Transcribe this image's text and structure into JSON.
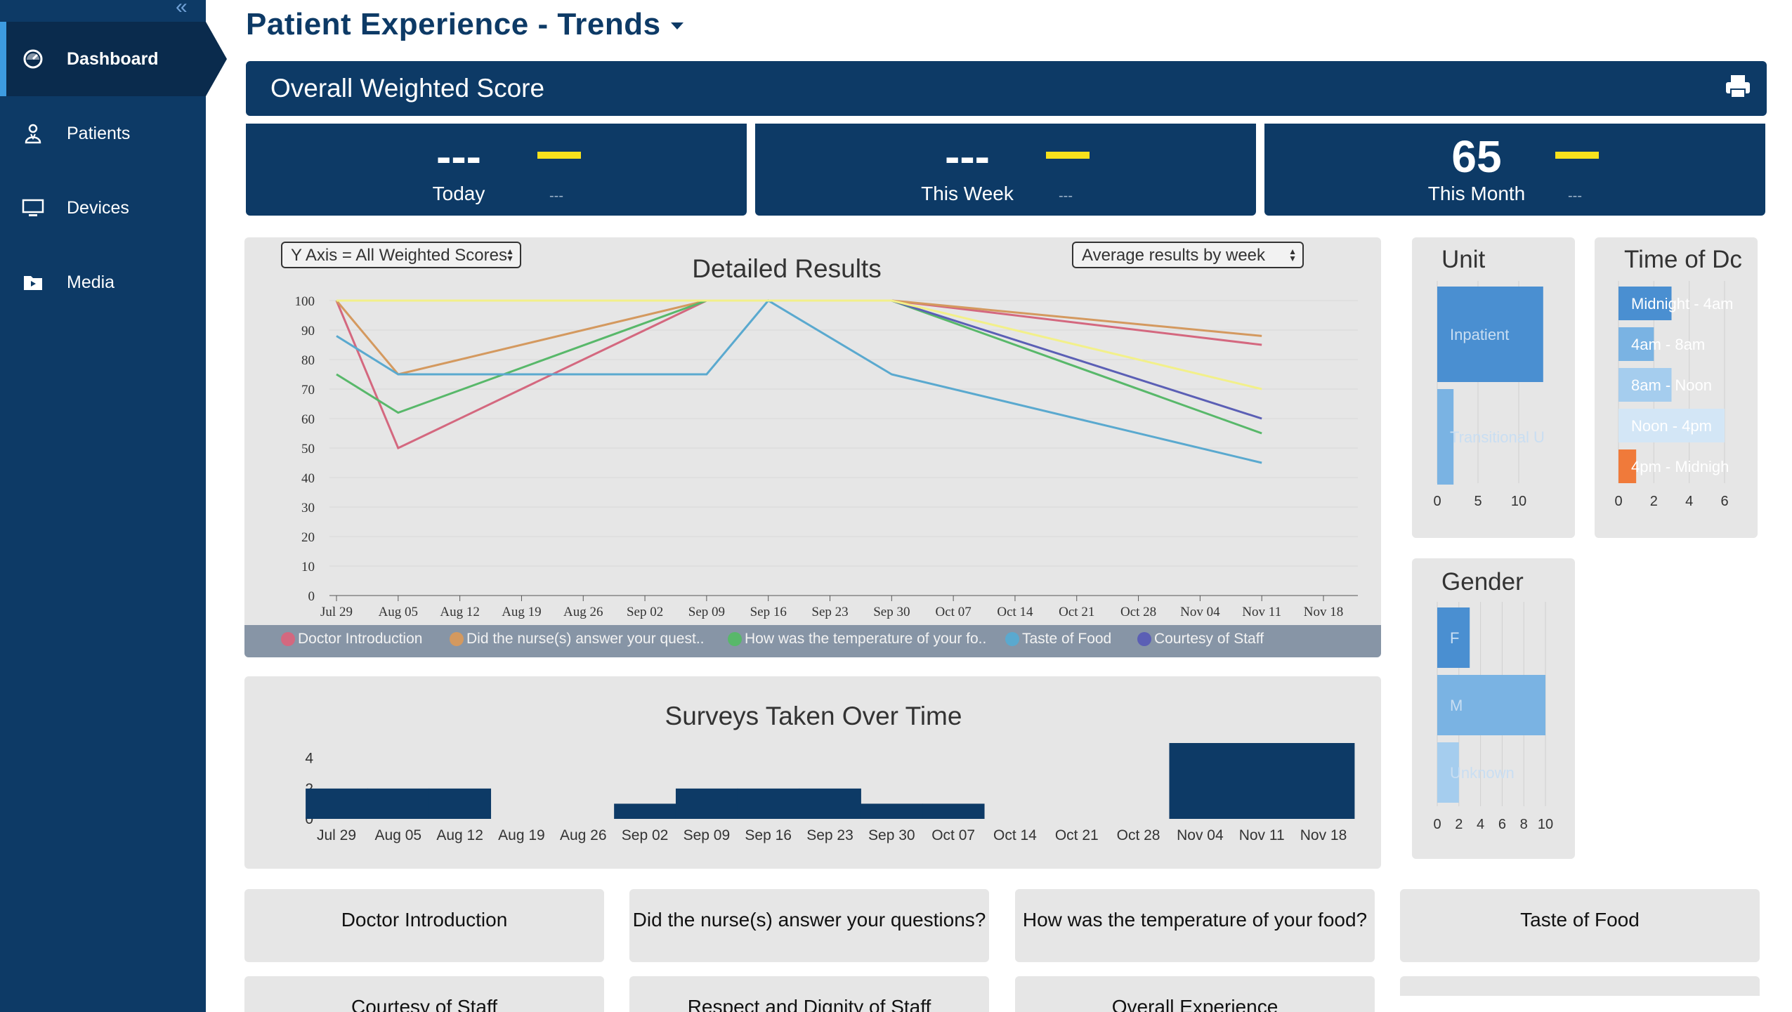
{
  "sidebar": {
    "collapse_icon": "double-chevron-left-icon",
    "items": [
      {
        "label": "Dashboard",
        "icon": "dashboard-icon",
        "active": true
      },
      {
        "label": "Patients",
        "icon": "patient-icon"
      },
      {
        "label": "Devices",
        "icon": "monitor-icon"
      },
      {
        "label": "Media",
        "icon": "media-folder-icon"
      }
    ]
  },
  "page": {
    "title": "Patient Experience - Trends"
  },
  "score": {
    "title": "Overall Weighted Score",
    "print_icon": "printer-icon",
    "kpis": [
      {
        "value": "---",
        "label": "Today",
        "sub": "---"
      },
      {
        "value": "---",
        "label": "This Week",
        "sub": "---"
      },
      {
        "value": "65",
        "label": "This Month",
        "sub": "---"
      }
    ]
  },
  "detailed": {
    "title": "Detailed Results",
    "y_select": "Y Axis = All Weighted Scores",
    "period_select": "Average results by week",
    "legend": [
      {
        "name": "Doctor Introduction",
        "color": "#d4687f"
      },
      {
        "name": "Did the nurse(s) answer your quest..",
        "color": "#d4995f"
      },
      {
        "name": "How was the temperature of your fo..",
        "color": "#58b86a"
      },
      {
        "name": "Taste of Food",
        "color": "#5aa9cf"
      },
      {
        "name": "Courtesy of Staff",
        "color": "#5b5fb5"
      }
    ]
  },
  "surveys": {
    "title": "Surveys Taken Over Time"
  },
  "unit": {
    "title": "Unit"
  },
  "timeofday": {
    "title": "Time of Dc"
  },
  "gender": {
    "title": "Gender"
  },
  "questions": [
    "Doctor Introduction",
    "Did the nurse(s) answer your questions?",
    "How was the temperature of your food?",
    "Taste of Food",
    "Courtesy of Staff",
    "Respect and Dignity of Staff",
    "Overall Experience"
  ],
  "chart_data": [
    {
      "type": "line",
      "title": "Detailed Results",
      "x": [
        "Jul 29",
        "Aug 05",
        "Aug 12",
        "Aug 19",
        "Aug 26",
        "Sep 02",
        "Sep 09",
        "Sep 16",
        "Sep 23",
        "Sep 30",
        "Oct 07",
        "Oct 14",
        "Oct 21",
        "Oct 28",
        "Nov 04",
        "Nov 11",
        "Nov 18"
      ],
      "ylim": [
        0,
        100
      ],
      "yticks": [
        0,
        10,
        20,
        30,
        40,
        50,
        60,
        70,
        80,
        90,
        100
      ],
      "series": [
        {
          "name": "Doctor Introduction",
          "color": "#d4687f",
          "points": [
            [
              0,
              100
            ],
            [
              1,
              50
            ],
            [
              6,
              100
            ],
            [
              9,
              100
            ],
            [
              15,
              85
            ]
          ]
        },
        {
          "name": "Did the nurse(s) answer your quest..",
          "color": "#d4995f",
          "points": [
            [
              0,
              100
            ],
            [
              1,
              75
            ],
            [
              6,
              100
            ],
            [
              9,
              100
            ],
            [
              15,
              88
            ]
          ]
        },
        {
          "name": "How was the temperature of your fo..",
          "color": "#58b86a",
          "points": [
            [
              0,
              75
            ],
            [
              1,
              62
            ],
            [
              6,
              100
            ],
            [
              9,
              100
            ],
            [
              15,
              55
            ]
          ]
        },
        {
          "name": "Taste of Food",
          "color": "#5aa9cf",
          "points": [
            [
              0,
              88
            ],
            [
              1,
              75
            ],
            [
              6,
              75
            ],
            [
              7,
              100
            ],
            [
              9,
              75
            ],
            [
              15,
              45
            ]
          ]
        },
        {
          "name": "Courtesy of Staff",
          "color": "#5b5fb5",
          "points": [
            [
              9,
              100
            ],
            [
              15,
              60
            ]
          ]
        },
        {
          "name": "",
          "color": "#f2f08a",
          "points": [
            [
              0,
              100
            ],
            [
              9,
              100
            ],
            [
              15,
              70
            ]
          ]
        }
      ]
    },
    {
      "type": "bar",
      "title": "Surveys Taken Over Time",
      "categories": [
        "Jul 29",
        "Aug 05",
        "Aug 12",
        "Aug 19",
        "Aug 26",
        "Sep 02",
        "Sep 09",
        "Sep 16",
        "Sep 23",
        "Sep 30",
        "Oct 07",
        "Oct 14",
        "Oct 21",
        "Oct 28",
        "Nov 04",
        "Nov 11",
        "Nov 18"
      ],
      "values": [
        2,
        2,
        2,
        0,
        0,
        1,
        2,
        2,
        2,
        1,
        1,
        0,
        0,
        0,
        5,
        5,
        5
      ],
      "yticks": [
        0,
        2,
        4
      ],
      "color": "#0d3a66"
    },
    {
      "type": "bar",
      "title": "Unit",
      "orientation": "horizontal",
      "categories": [
        "Inpatient",
        "Transitional U"
      ],
      "values": [
        13,
        2
      ],
      "xticks": [
        0,
        5,
        10
      ],
      "colors": [
        "#4a8fd1",
        "#7ab3e3"
      ]
    },
    {
      "type": "bar",
      "title": "Time of Dc",
      "orientation": "horizontal",
      "categories": [
        "Midnight - 4am",
        "4am - 8am",
        "8am - Noon",
        "Noon - 4pm",
        "4pm - Midnigh"
      ],
      "values": [
        3,
        2,
        3,
        6,
        1
      ],
      "xticks": [
        0,
        2,
        4,
        6
      ],
      "colors": [
        "#4a8fd1",
        "#7ab3e3",
        "#a5cdee",
        "#d3e6f6",
        "#f07a3a"
      ]
    },
    {
      "type": "bar",
      "title": "Gender",
      "orientation": "horizontal",
      "categories": [
        "F",
        "M",
        "Unknown"
      ],
      "values": [
        3,
        10,
        2
      ],
      "xticks": [
        0,
        2,
        4,
        6,
        8,
        10
      ],
      "colors": [
        "#4a8fd1",
        "#7ab3e3",
        "#a5cdee"
      ]
    }
  ]
}
